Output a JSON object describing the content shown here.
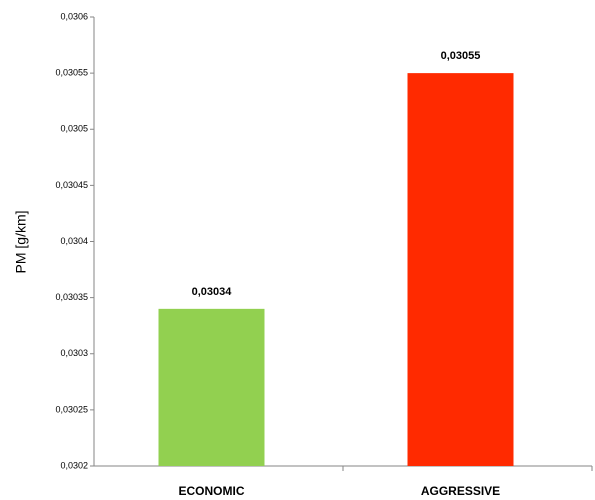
{
  "chart_data": {
    "type": "bar",
    "y_label": "PM [g/km]",
    "categories": [
      "ECONOMIC",
      "AGGRESSIVE"
    ],
    "values": [
      0.03034,
      0.03055
    ],
    "value_labels": [
      "0,03034",
      "0,03055"
    ],
    "colors": [
      "#92d050",
      "#ff2a00"
    ],
    "ylim": [
      0.0302,
      0.0306
    ],
    "yticks": [
      {
        "value": 0.0302,
        "label": "0,0302"
      },
      {
        "value": 0.03025,
        "label": "0,03025"
      },
      {
        "value": 0.0303,
        "label": "0,0303"
      },
      {
        "value": 0.03035,
        "label": "0,03035"
      },
      {
        "value": 0.0304,
        "label": "0,0304"
      },
      {
        "value": 0.03045,
        "label": "0,03045"
      },
      {
        "value": 0.0305,
        "label": "0,0305"
      },
      {
        "value": 0.03055,
        "label": "0,03055"
      },
      {
        "value": 0.0306,
        "label": "0,0306"
      }
    ],
    "grid": false
  }
}
